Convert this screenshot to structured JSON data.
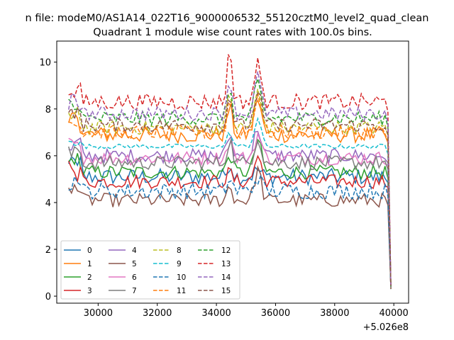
{
  "chart_data": {
    "type": "line",
    "suptitle": "n file: modeM0/AS1A14_022T16_9000006532_55120cztM0_level2_quad_clean",
    "title": "Quadrant 1 module wise count rates with 100.0s bins.",
    "xlabel": "",
    "ylabel": "",
    "x_offset_label": "+5.026e8",
    "xlim": [
      28600,
      40500
    ],
    "ylim": [
      -0.3,
      10.9
    ],
    "x_ticks": [
      30000,
      32000,
      34000,
      36000,
      38000,
      40000
    ],
    "x_tick_labels": [
      "30000",
      "32000",
      "34000",
      "36000",
      "38000",
      "40000"
    ],
    "y_ticks": [
      0,
      2,
      4,
      6,
      8,
      10
    ],
    "y_tick_labels": [
      "0",
      "2",
      "4",
      "6",
      "8",
      "10"
    ],
    "x_start": 29000,
    "x_step": 100,
    "legend_loc": "lower-left",
    "legend_columns": 4,
    "series": [
      {
        "name": "0",
        "color": "#1f77b4",
        "dash": "solid",
        "base": 5.1,
        "noise": 0.35,
        "peak": 0.6,
        "peak2": 0.3
      },
      {
        "name": "1",
        "color": "#ff7f0e",
        "dash": "solid",
        "base": 6.9,
        "noise": 0.35,
        "peak": 1.2,
        "peak2": 1.6
      },
      {
        "name": "2",
        "color": "#2ca02c",
        "dash": "solid",
        "base": 5.3,
        "noise": 0.3,
        "peak": 0.8,
        "peak2": 1.4
      },
      {
        "name": "3",
        "color": "#d62728",
        "dash": "solid",
        "base": 4.9,
        "noise": 0.3,
        "peak": 0.4,
        "peak2": 1.1
      },
      {
        "name": "4",
        "color": "#9467bd",
        "dash": "solid",
        "base": 6.0,
        "noise": 0.3,
        "peak": 0.9,
        "peak2": 1.2
      },
      {
        "name": "5",
        "color": "#8c564b",
        "dash": "solid",
        "base": 4.1,
        "noise": 0.3,
        "peak": 0.6,
        "peak2": 1.3
      },
      {
        "name": "6",
        "color": "#e377c2",
        "dash": "solid",
        "base": 5.9,
        "noise": 0.3,
        "peak": 0.8,
        "peak2": 1.0
      },
      {
        "name": "7",
        "color": "#7f7f7f",
        "dash": "solid",
        "base": 5.7,
        "noise": 0.3,
        "peak": 1.0,
        "peak2": 1.1
      },
      {
        "name": "8",
        "color": "#bcbd22",
        "dash": "dashed",
        "base": 7.2,
        "noise": 0.3,
        "peak": 1.4,
        "peak2": 1.5
      },
      {
        "name": "9",
        "color": "#17becf",
        "dash": "dashed",
        "base": 6.4,
        "noise": 0.1,
        "peak": 0.6,
        "peak2": 1.2
      },
      {
        "name": "10",
        "color": "#1f77b4",
        "dash": "dashed",
        "base": 4.5,
        "noise": 0.35,
        "peak": 0.5,
        "peak2": 0.6
      },
      {
        "name": "11",
        "color": "#ff7f0e",
        "dash": "dashed",
        "base": 7.0,
        "noise": 0.3,
        "peak": 1.4,
        "peak2": 1.7
      },
      {
        "name": "12",
        "color": "#2ca02c",
        "dash": "dashed",
        "base": 7.6,
        "noise": 0.3,
        "peak": 1.3,
        "peak2": 1.5
      },
      {
        "name": "13",
        "color": "#d62728",
        "dash": "dashed",
        "base": 8.3,
        "noise": 0.35,
        "peak": 2.2,
        "peak2": 1.6
      },
      {
        "name": "14",
        "color": "#9467bd",
        "dash": "dashed",
        "base": 7.8,
        "noise": 0.3,
        "peak": 1.5,
        "peak2": 1.6
      },
      {
        "name": "15",
        "color": "#8c564b",
        "dash": "dashed",
        "base": 7.3,
        "noise": 0.3,
        "peak": 1.3,
        "peak2": 1.5
      }
    ]
  }
}
